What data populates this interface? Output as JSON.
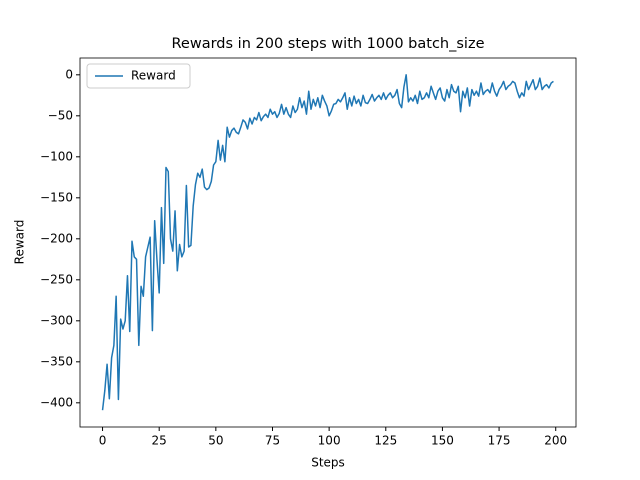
{
  "chart_data": {
    "type": "line",
    "title": "Rewards in 200 steps with 1000 batch_size",
    "x_label": "Steps",
    "y_label": "Reward",
    "x": [
      0,
      1,
      2,
      3,
      4,
      5,
      6,
      7,
      8,
      9,
      10,
      11,
      12,
      13,
      14,
      15,
      16,
      17,
      18,
      19,
      20,
      21,
      22,
      23,
      24,
      25,
      26,
      27,
      28,
      29,
      30,
      31,
      32,
      33,
      34,
      35,
      36,
      37,
      38,
      39,
      40,
      41,
      42,
      43,
      44,
      45,
      46,
      47,
      48,
      49,
      50,
      51,
      52,
      53,
      54,
      55,
      56,
      57,
      58,
      59,
      60,
      61,
      62,
      63,
      64,
      65,
      66,
      67,
      68,
      69,
      70,
      71,
      72,
      73,
      74,
      75,
      76,
      77,
      78,
      79,
      80,
      81,
      82,
      83,
      84,
      85,
      86,
      87,
      88,
      89,
      90,
      91,
      92,
      93,
      94,
      95,
      96,
      97,
      98,
      99,
      100,
      101,
      102,
      103,
      104,
      105,
      106,
      107,
      108,
      109,
      110,
      111,
      112,
      113,
      114,
      115,
      116,
      117,
      118,
      119,
      120,
      121,
      122,
      123,
      124,
      125,
      126,
      127,
      128,
      129,
      130,
      131,
      132,
      133,
      134,
      135,
      136,
      137,
      138,
      139,
      140,
      141,
      142,
      143,
      144,
      145,
      146,
      147,
      148,
      149,
      150,
      151,
      152,
      153,
      154,
      155,
      156,
      157,
      158,
      159,
      160,
      161,
      162,
      163,
      164,
      165,
      166,
      167,
      168,
      169,
      170,
      171,
      172,
      173,
      174,
      175,
      176,
      177,
      178,
      179,
      180,
      181,
      182,
      183,
      184,
      185,
      186,
      187,
      188,
      189,
      190,
      191,
      192,
      193,
      194,
      195,
      196,
      197,
      198,
      199
    ],
    "series": [
      {
        "name": "Reward",
        "color": "#1f77b4",
        "values": [
          -409,
          -385,
          -353,
          -395,
          -345,
          -330,
          -270,
          -396,
          -298,
          -310,
          -300,
          -245,
          -313,
          -203,
          -222,
          -225,
          -330,
          -258,
          -270,
          -222,
          -210,
          -198,
          -312,
          -178,
          -225,
          -266,
          -162,
          -230,
          -113,
          -118,
          -200,
          -215,
          -166,
          -239,
          -207,
          -222,
          -215,
          -135,
          -210,
          -208,
          -160,
          -134,
          -120,
          -125,
          -115,
          -137,
          -140,
          -138,
          -130,
          -110,
          -106,
          -80,
          -104,
          -86,
          -106,
          -64,
          -76,
          -68,
          -65,
          -70,
          -72,
          -64,
          -55,
          -58,
          -66,
          -53,
          -60,
          -52,
          -55,
          -46,
          -56,
          -51,
          -48,
          -52,
          -42,
          -48,
          -45,
          -52,
          -47,
          -36,
          -48,
          -40,
          -48,
          -52,
          -38,
          -46,
          -42,
          -28,
          -40,
          -32,
          -48,
          -20,
          -42,
          -30,
          -38,
          -28,
          -40,
          -25,
          -32,
          -38,
          -50,
          -44,
          -36,
          -35,
          -30,
          -33,
          -28,
          -22,
          -42,
          -28,
          -38,
          -26,
          -35,
          -30,
          -38,
          -25,
          -34,
          -35,
          -30,
          -24,
          -32,
          -28,
          -25,
          -30,
          -22,
          -30,
          -25,
          -22,
          -28,
          -25,
          -18,
          -35,
          -40,
          -15,
          0,
          -33,
          -28,
          -32,
          -25,
          -35,
          -20,
          -30,
          -28,
          -22,
          -28,
          -14,
          -22,
          -30,
          -20,
          -16,
          -28,
          -32,
          -18,
          -28,
          -12,
          -20,
          -22,
          -14,
          -45,
          -20,
          -28,
          -16,
          -38,
          -18,
          -25,
          -20,
          -26,
          -10,
          -24,
          -20,
          -18,
          -22,
          -10,
          -20,
          -26,
          -18,
          -14,
          -8,
          -18,
          -14,
          -12,
          -8,
          -10,
          -20,
          -28,
          -22,
          -26,
          -8,
          -18,
          -12,
          -6,
          -18,
          -14,
          -4,
          -18,
          -14,
          -12,
          -16,
          -10,
          -8
        ]
      }
    ],
    "xlim": [
      -9.95,
      208.95
    ],
    "ylim": [
      -429.5,
      20.5
    ],
    "xticks": [
      0,
      25,
      50,
      75,
      100,
      125,
      150,
      175,
      200
    ],
    "yticks": [
      {
        "value": -400,
        "label": "−400"
      },
      {
        "value": -350,
        "label": "−350"
      },
      {
        "value": -300,
        "label": "−300"
      },
      {
        "value": -250,
        "label": "−250"
      },
      {
        "value": -200,
        "label": "−200"
      },
      {
        "value": -150,
        "label": "−150"
      },
      {
        "value": -100,
        "label": "−100"
      },
      {
        "value": -50,
        "label": "−50"
      },
      0
    ],
    "legend": "upper left",
    "grid": false
  }
}
